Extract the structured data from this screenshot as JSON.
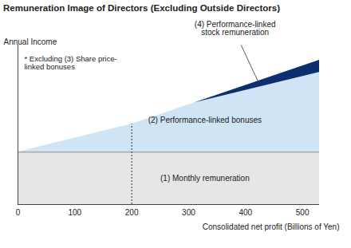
{
  "chart_data": {
    "type": "area",
    "title": "Remuneration Image of Directors (Excluding Outside Directors)",
    "y_label": "Annual Income",
    "x_label": "Consolidated net profit (Billions of Yen)",
    "annotation": "* Excluding (3) Share price-\nlinked bonuses",
    "stacked": true,
    "tick_labels": "x",
    "x": [
      0,
      200,
      310,
      530
    ],
    "xlim": [
      0,
      530
    ],
    "xticks": [
      0,
      100,
      200,
      300,
      400,
      500
    ],
    "ylim": [
      0,
      210
    ],
    "yticks": [],
    "vline": 200,
    "series": [
      {
        "name": "(1) Monthly remuneration",
        "color": "#e6e6e6",
        "values": [
          69,
          69,
          69,
          69
        ]
      },
      {
        "name": "(2) Performance-linked bonuses",
        "color": "#cfe4f5",
        "values": [
          0,
          37,
          65,
          105
        ]
      },
      {
        "name": "(4) Performance-linked\nstock remuneration",
        "color": "#0d2f6e",
        "values": [
          0,
          0,
          0,
          16
        ]
      }
    ]
  }
}
